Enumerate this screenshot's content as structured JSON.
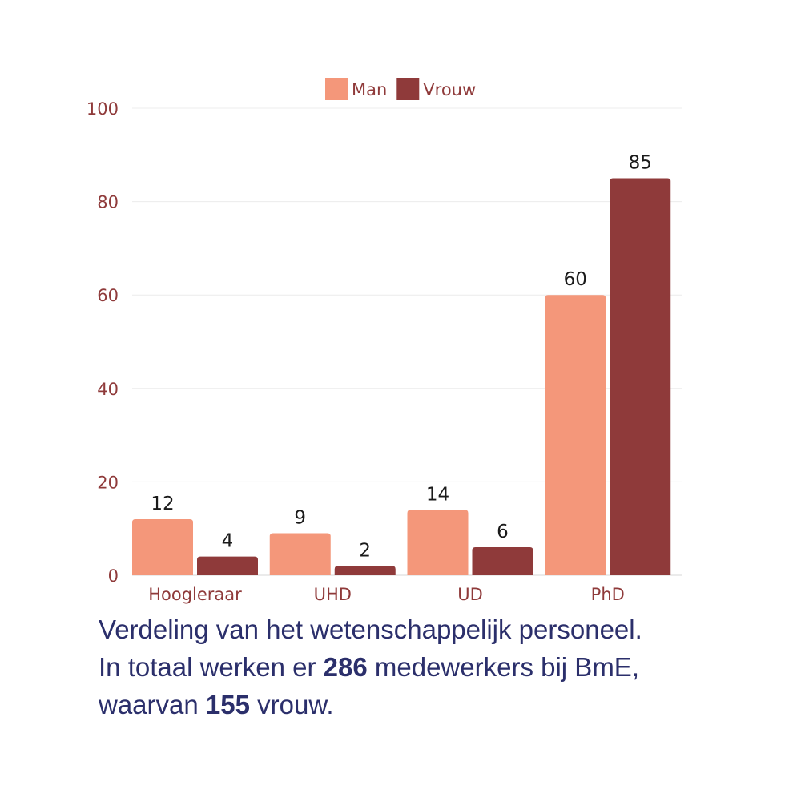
{
  "chart_data": {
    "type": "bar",
    "categories": [
      "Hoogleraar",
      "UHD",
      "UD",
      "PhD"
    ],
    "series": [
      {
        "name": "Man",
        "color": "#f4977a",
        "values": [
          12,
          9,
          14,
          60
        ]
      },
      {
        "name": "Vrouw",
        "color": "#8f3a3a",
        "values": [
          4,
          2,
          6,
          85
        ]
      }
    ],
    "ylim": [
      0,
      100
    ],
    "yticks": [
      0,
      20,
      40,
      60,
      80,
      100
    ],
    "grid": true,
    "legend": "top-center",
    "data_labels": true
  },
  "caption": {
    "line1": "Verdeling van het wetenschappelijk personeel.",
    "line2_pre": "In totaal werken er ",
    "line2_bold": "286",
    "line2_post": " medewerkers bij BmE,",
    "line3_pre": "waarvan ",
    "line3_bold": "155",
    "line3_post": " vrouw."
  }
}
